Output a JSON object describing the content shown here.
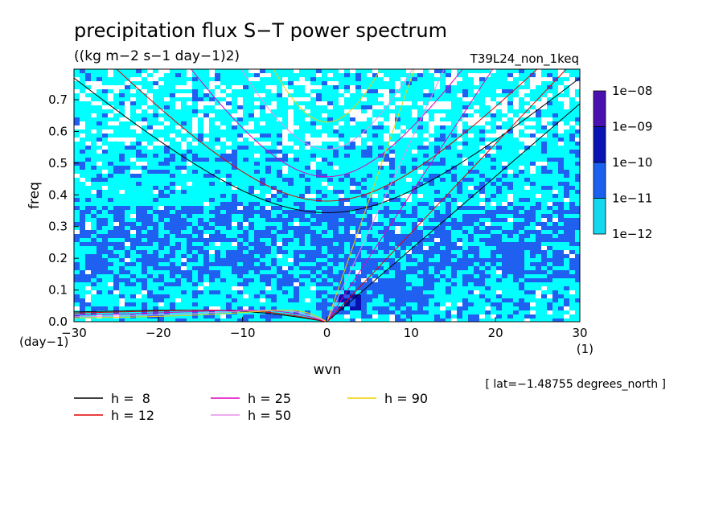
{
  "chart_data": {
    "type": "heatmap",
    "title": "precipitation flux S−T power spectrum",
    "subtitle": "((kg m−2 s−1 day−1)2)",
    "run_label": "T39L24_non_1keq",
    "xlabel": "wvn",
    "ylabel": "freq",
    "x_units": "(1)",
    "y_units": "(day−1)",
    "xlim": [
      -30,
      30
    ],
    "ylim": [
      0.0,
      0.8
    ],
    "x_ticks": [
      "−30",
      "−20",
      "−10",
      "0",
      "10",
      "20",
      "30"
    ],
    "x_tick_values": [
      -30,
      -20,
      -10,
      0,
      10,
      20,
      30
    ],
    "y_ticks": [
      "0.0",
      "0.1",
      "0.2",
      "0.3",
      "0.4",
      "0.5",
      "0.6",
      "0.7"
    ],
    "y_tick_values": [
      0.0,
      0.1,
      0.2,
      0.3,
      0.4,
      0.5,
      0.6,
      0.7
    ],
    "colorbar": {
      "levels": [
        "1e−08",
        "1e−09",
        "1e−10",
        "1e−11",
        "1e−12"
      ],
      "colors": [
        "#4a10b0",
        "#0a14b4",
        "#1c60f0",
        "#14d8f0"
      ]
    },
    "field_colors": {
      "below_range": "#ffffff",
      "1e-12_to_1e-11": "#00ffff",
      "1e-11_to_1e-10": "#2060f0",
      "1e-10_to_1e-09": "#0a10b0",
      "1e-09_to_1e-08": "#4a10b0"
    },
    "field_regions": [
      {
        "freq_range": [
          0.55,
          0.8
        ],
        "dominant": "1e-12_to_1e-11",
        "note": "patchy with white gaps"
      },
      {
        "freq_range": [
          0.35,
          0.55
        ],
        "dominant": "1e-12_to_1e-11",
        "note": "scattered 1e-11 patches"
      },
      {
        "freq_range": [
          0.12,
          0.35
        ],
        "dominant": "1e-11_to_1e-10",
        "note": "dense 1e-11 band"
      },
      {
        "freq_range": [
          0.0,
          0.12
        ],
        "dominant": "1e-12_to_1e-11",
        "note": "1e-11 to 1e-10 near wvn 0 to 5"
      }
    ],
    "dispersion_curves": [
      {
        "name": "h =  8",
        "color": "#000000"
      },
      {
        "name": "h = 12",
        "color": "#e00000"
      },
      {
        "name": "h = 25",
        "color": "#e000c0"
      },
      {
        "name": "h = 50",
        "color": "#e890e8"
      },
      {
        "name": "h = 90",
        "color": "#f0d000"
      }
    ],
    "latitude_note": "[ lat=−1.48755 degrees_north ]"
  }
}
